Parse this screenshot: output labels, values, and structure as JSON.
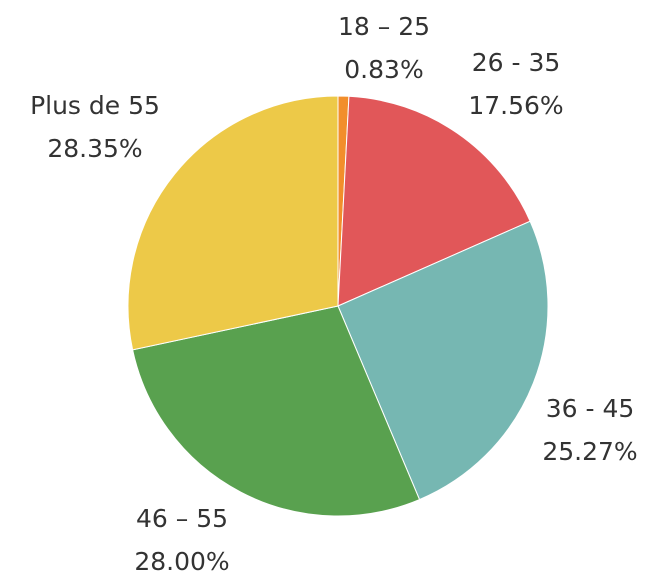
{
  "chart_data": {
    "type": "pie",
    "categories": [
      "18 – 25",
      "26 - 35",
      "36 - 45",
      "46 – 55",
      "Plus de 55"
    ],
    "values": [
      0.83,
      17.56,
      25.27,
      28.0,
      28.35
    ],
    "value_labels": [
      "0.83%",
      "17.56%",
      "25.27%",
      "28.00%",
      "28.35%"
    ],
    "colors": [
      "#f28e2b",
      "#e15759",
      "#76b7b2",
      "#59a14f",
      "#edc948"
    ]
  }
}
